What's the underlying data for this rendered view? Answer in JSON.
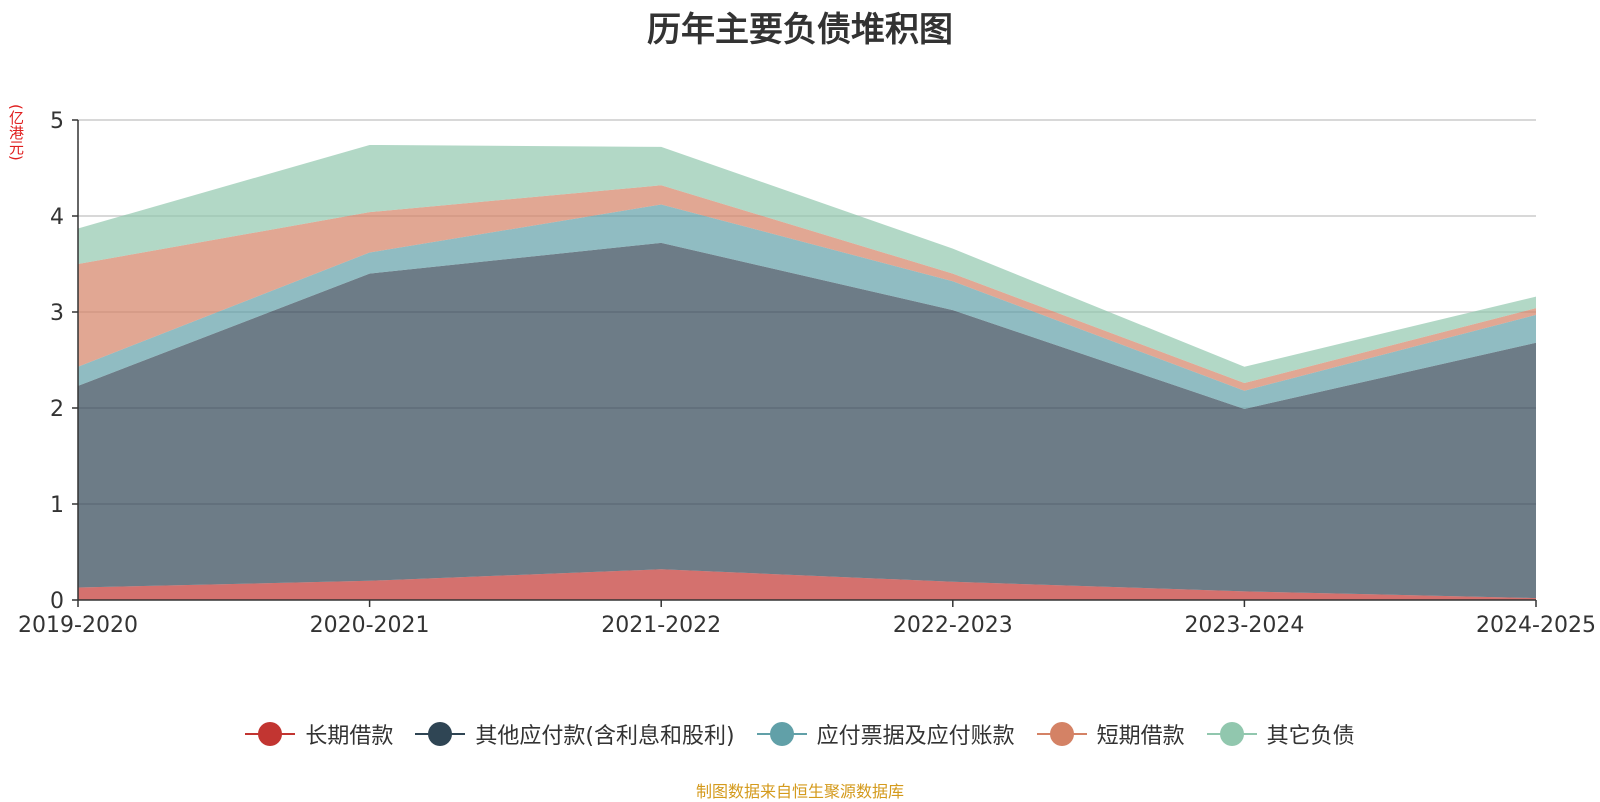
{
  "chart_data": {
    "type": "area",
    "title": "历年主要负债堆积图",
    "ylabel": "(亿港元)",
    "xlabel": "",
    "categories": [
      "2019-2020",
      "2020-2021",
      "2021-2022",
      "2022-2023",
      "2023-2024",
      "2024-2025"
    ],
    "ylim": [
      0,
      5
    ],
    "yticks": [
      0,
      1,
      2,
      3,
      4,
      5
    ],
    "stacked": true,
    "grid": true,
    "legend_position": "bottom",
    "series": [
      {
        "name": "长期借款",
        "color": "#c23531",
        "values": [
          0.13,
          0.2,
          0.32,
          0.19,
          0.09,
          0.02
        ]
      },
      {
        "name": "其他应付款(含利息和股利)",
        "color": "#2f4554",
        "values": [
          2.1,
          3.2,
          3.4,
          2.83,
          1.9,
          2.66
        ]
      },
      {
        "name": "应付票据及应付账款",
        "color": "#61a0a8",
        "values": [
          0.2,
          0.22,
          0.4,
          0.3,
          0.19,
          0.29
        ]
      },
      {
        "name": "短期借款",
        "color": "#d48265",
        "values": [
          1.07,
          0.42,
          0.2,
          0.08,
          0.08,
          0.07
        ]
      },
      {
        "name": "其它负债",
        "color": "#91c7ae",
        "values": [
          0.37,
          0.7,
          0.4,
          0.26,
          0.17,
          0.12
        ]
      }
    ]
  },
  "footer": {
    "source": "制图数据来自恒生聚源数据库"
  }
}
